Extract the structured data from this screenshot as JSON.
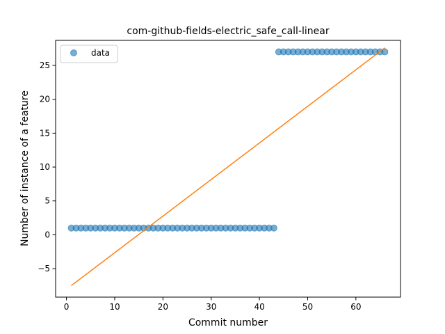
{
  "chart_data": {
    "type": "scatter",
    "title": "com-github-fields-electric_safe_call-linear",
    "xlabel": "Commit number",
    "ylabel": "Number of instance of a feature",
    "xlim": [
      -2.25,
      69.25
    ],
    "ylim": [
      -9.2,
      28.7
    ],
    "xticks": [
      0,
      10,
      20,
      30,
      40,
      50,
      60
    ],
    "yticks": [
      -5,
      0,
      5,
      10,
      15,
      20,
      25
    ],
    "grid": false,
    "legend": {
      "position": "top-left",
      "entries": [
        "data"
      ]
    },
    "series": [
      {
        "name": "data",
        "kind": "scatter",
        "color": "#1f77b4",
        "alpha": 0.6,
        "points": [
          [
            1,
            1
          ],
          [
            2,
            1
          ],
          [
            3,
            1
          ],
          [
            4,
            1
          ],
          [
            5,
            1
          ],
          [
            6,
            1
          ],
          [
            7,
            1
          ],
          [
            8,
            1
          ],
          [
            9,
            1
          ],
          [
            10,
            1
          ],
          [
            11,
            1
          ],
          [
            12,
            1
          ],
          [
            13,
            1
          ],
          [
            14,
            1
          ],
          [
            15,
            1
          ],
          [
            16,
            1
          ],
          [
            17,
            1
          ],
          [
            18,
            1
          ],
          [
            19,
            1
          ],
          [
            20,
            1
          ],
          [
            21,
            1
          ],
          [
            22,
            1
          ],
          [
            23,
            1
          ],
          [
            24,
            1
          ],
          [
            25,
            1
          ],
          [
            26,
            1
          ],
          [
            27,
            1
          ],
          [
            28,
            1
          ],
          [
            29,
            1
          ],
          [
            30,
            1
          ],
          [
            31,
            1
          ],
          [
            32,
            1
          ],
          [
            33,
            1
          ],
          [
            34,
            1
          ],
          [
            35,
            1
          ],
          [
            36,
            1
          ],
          [
            37,
            1
          ],
          [
            38,
            1
          ],
          [
            39,
            1
          ],
          [
            40,
            1
          ],
          [
            41,
            1
          ],
          [
            42,
            1
          ],
          [
            43,
            1
          ],
          [
            44,
            27
          ],
          [
            45,
            27
          ],
          [
            46,
            27
          ],
          [
            47,
            27
          ],
          [
            48,
            27
          ],
          [
            49,
            27
          ],
          [
            50,
            27
          ],
          [
            51,
            27
          ],
          [
            52,
            27
          ],
          [
            53,
            27
          ],
          [
            54,
            27
          ],
          [
            55,
            27
          ],
          [
            56,
            27
          ],
          [
            57,
            27
          ],
          [
            58,
            27
          ],
          [
            59,
            27
          ],
          [
            60,
            27
          ],
          [
            61,
            27
          ],
          [
            62,
            27
          ],
          [
            63,
            27
          ],
          [
            64,
            27
          ],
          [
            65,
            27
          ],
          [
            66,
            27
          ]
        ]
      },
      {
        "kind": "line",
        "color": "#ff7f0e",
        "points": [
          [
            1,
            -7.5
          ],
          [
            66,
            27.6
          ]
        ]
      }
    ]
  }
}
